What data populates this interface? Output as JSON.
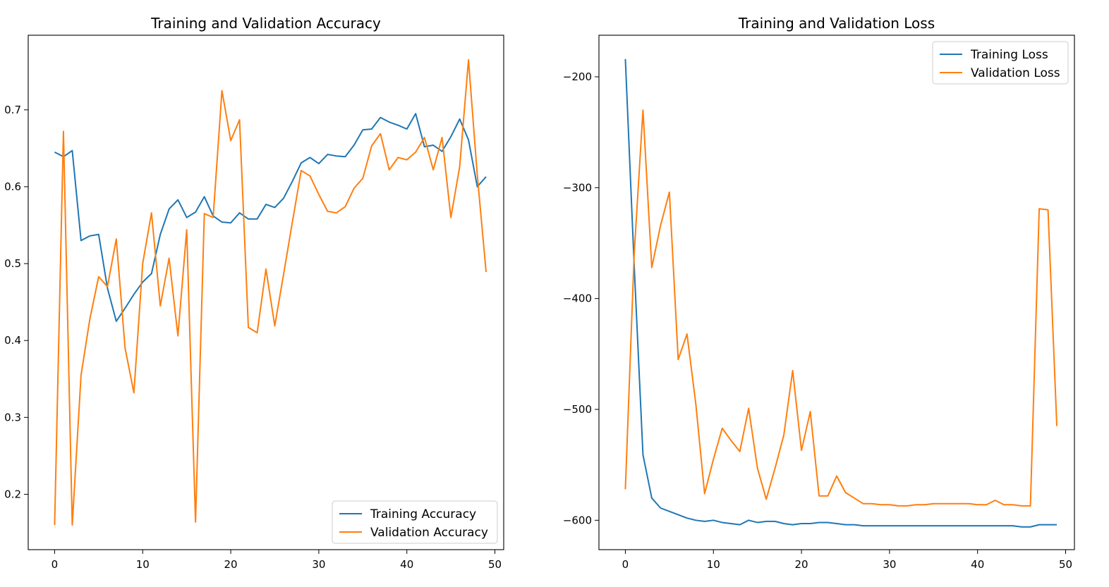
{
  "figure": {
    "colors": {
      "training": "#1f77b4",
      "validation": "#ff7f0e"
    }
  },
  "chart_data": [
    {
      "type": "line",
      "title": "Training and Validation Accuracy",
      "xlabel": "",
      "ylabel": "",
      "xlim": [
        -3,
        51
      ],
      "ylim": [
        0.128,
        0.797
      ],
      "xticks": [
        0,
        10,
        20,
        30,
        40,
        50
      ],
      "xtick_labels": [
        "0",
        "10",
        "20",
        "30",
        "40",
        "50"
      ],
      "yticks": [
        0.2,
        0.3,
        0.4,
        0.5,
        0.6,
        0.7
      ],
      "ytick_labels": [
        "0.2",
        "0.3",
        "0.4",
        "0.5",
        "0.6",
        "0.7"
      ],
      "grid": false,
      "legend": "lower right",
      "x": [
        0,
        1,
        2,
        3,
        4,
        5,
        6,
        7,
        8,
        9,
        10,
        11,
        12,
        13,
        14,
        15,
        16,
        17,
        18,
        19,
        20,
        21,
        22,
        23,
        24,
        25,
        26,
        27,
        28,
        29,
        30,
        31,
        32,
        33,
        34,
        35,
        36,
        37,
        38,
        39,
        40,
        41,
        42,
        43,
        44,
        45,
        46,
        47,
        48,
        49
      ],
      "series": [
        {
          "name": "Training Accuracy",
          "color": "#1f77b4",
          "values": [
            0.645,
            0.639,
            0.647,
            0.53,
            0.536,
            0.538,
            0.468,
            0.425,
            0.442,
            0.46,
            0.476,
            0.487,
            0.538,
            0.571,
            0.583,
            0.56,
            0.567,
            0.587,
            0.562,
            0.554,
            0.553,
            0.566,
            0.558,
            0.558,
            0.577,
            0.573,
            0.585,
            0.607,
            0.631,
            0.638,
            0.63,
            0.642,
            0.64,
            0.639,
            0.654,
            0.674,
            0.675,
            0.69,
            0.684,
            0.68,
            0.675,
            0.695,
            0.652,
            0.654,
            0.646,
            0.665,
            0.688,
            0.661,
            0.6,
            0.613
          ]
        },
        {
          "name": "Validation Accuracy",
          "color": "#ff7f0e",
          "values": [
            0.16,
            0.672,
            0.16,
            0.355,
            0.428,
            0.483,
            0.47,
            0.532,
            0.39,
            0.332,
            0.5,
            0.566,
            0.445,
            0.507,
            0.406,
            0.544,
            0.164,
            0.565,
            0.56,
            0.725,
            0.66,
            0.687,
            0.417,
            0.41,
            0.493,
            0.419,
            0.486,
            0.554,
            0.621,
            0.614,
            0.59,
            0.568,
            0.566,
            0.574,
            0.598,
            0.611,
            0.653,
            0.669,
            0.622,
            0.638,
            0.635,
            0.645,
            0.664,
            0.622,
            0.664,
            0.56,
            0.626,
            0.765,
            0.615,
            0.489
          ]
        }
      ]
    },
    {
      "type": "line",
      "title": "Training and Validation Loss",
      "xlabel": "",
      "ylabel": "",
      "xlim": [
        -3,
        51
      ],
      "ylim": [
        -626.5,
        -162.5
      ],
      "xticks": [
        0,
        10,
        20,
        30,
        40,
        50
      ],
      "xtick_labels": [
        "0",
        "10",
        "20",
        "30",
        "40",
        "50"
      ],
      "yticks": [
        -200,
        -300,
        -400,
        -500,
        -600
      ],
      "ytick_labels": [
        "−200",
        "−300",
        "−400",
        "−500",
        "−600"
      ],
      "grid": false,
      "legend": "upper right",
      "x": [
        0,
        1,
        2,
        3,
        4,
        5,
        6,
        7,
        8,
        9,
        10,
        11,
        12,
        13,
        14,
        15,
        16,
        17,
        18,
        19,
        20,
        21,
        22,
        23,
        24,
        25,
        26,
        27,
        28,
        29,
        30,
        31,
        32,
        33,
        34,
        35,
        36,
        37,
        38,
        39,
        40,
        41,
        42,
        43,
        44,
        45,
        46,
        47,
        48,
        49
      ],
      "series": [
        {
          "name": "Training Loss",
          "color": "#1f77b4",
          "values": [
            -184,
            -370,
            -541,
            -580,
            -589,
            -592,
            -595,
            -598,
            -600,
            -601,
            -600,
            -602,
            -603,
            -604,
            -600,
            -602,
            -601,
            -601,
            -603,
            -604,
            -603,
            -603,
            -602,
            -602,
            -603,
            -604,
            -604,
            -605,
            -605,
            -605,
            -605,
            -605,
            -605,
            -605,
            -605,
            -605,
            -605,
            -605,
            -605,
            -605,
            -605,
            -605,
            -605,
            -605,
            -605,
            -606,
            -606,
            -604,
            -604,
            -604
          ]
        },
        {
          "name": "Validation Loss",
          "color": "#ff7f0e",
          "values": [
            -572,
            -360,
            -230,
            -372,
            -334,
            -304,
            -455,
            -432,
            -495,
            -576,
            -545,
            -517,
            -528,
            -538,
            -499,
            -553,
            -581,
            -553,
            -523,
            -465,
            -537,
            -502,
            -578,
            -578,
            -560,
            -575,
            -580,
            -585,
            -585,
            -586,
            -586,
            -587,
            -587,
            -586,
            -586,
            -585,
            -585,
            -585,
            -585,
            -585,
            -586,
            -586,
            -582,
            -586,
            -586,
            -587,
            -587,
            -319,
            -320,
            -515
          ]
        }
      ]
    }
  ]
}
